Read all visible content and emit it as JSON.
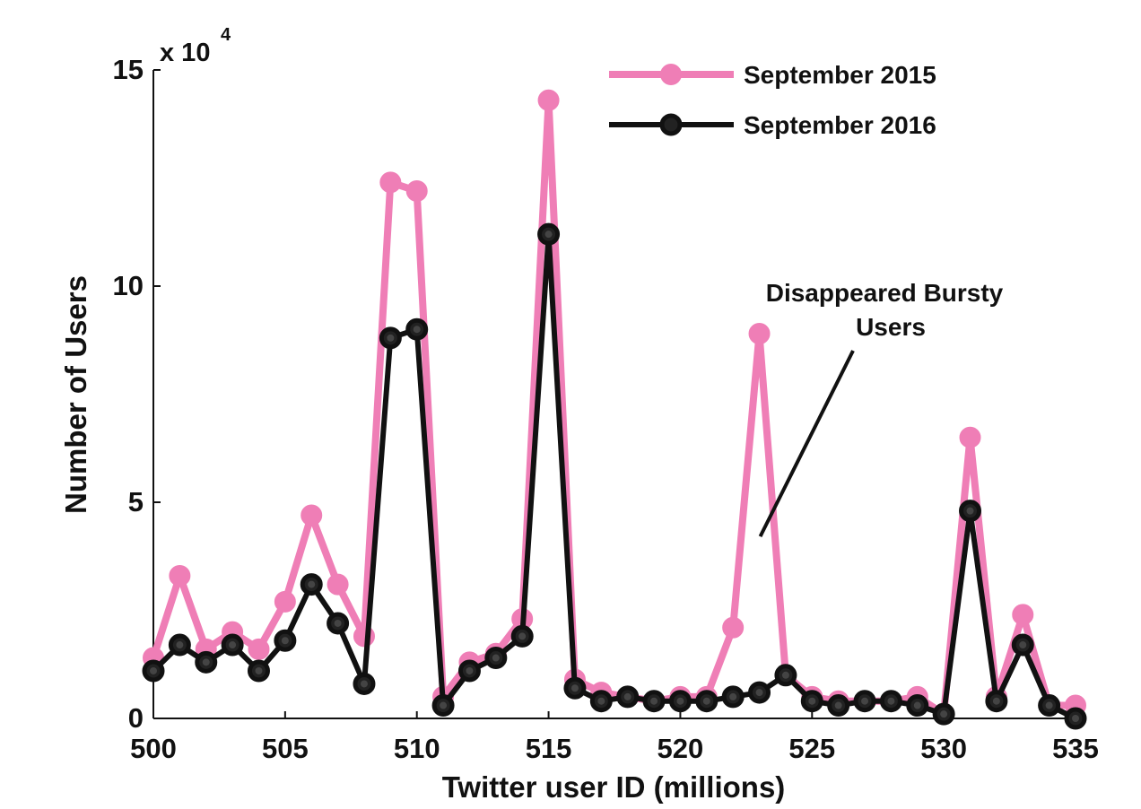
{
  "chart_data": {
    "type": "line",
    "title": "",
    "xlabel": "Twitter user ID (millions)",
    "ylabel": "Number of Users",
    "y_multiplier_label": "x 10",
    "y_multiplier_exponent": "4",
    "xlim": [
      500,
      535
    ],
    "ylim": [
      0,
      15
    ],
    "x_ticks": [
      500,
      505,
      510,
      515,
      520,
      525,
      530,
      535
    ],
    "x_tick_labels": [
      "500",
      "505",
      "510",
      "515",
      "520",
      "525",
      "530",
      "535"
    ],
    "y_ticks": [
      0,
      5,
      10,
      15
    ],
    "y_tick_labels": [
      "0",
      "5",
      "10",
      "15"
    ],
    "grid": false,
    "legend_position": "top-right",
    "x": [
      500,
      501,
      502,
      503,
      504,
      505,
      506,
      507,
      508,
      509,
      510,
      511,
      512,
      513,
      514,
      515,
      516,
      517,
      518,
      519,
      520,
      521,
      522,
      523,
      524,
      525,
      526,
      527,
      528,
      529,
      530,
      531,
      532,
      533,
      534,
      535
    ],
    "series": [
      {
        "name": "September 2015",
        "color": "#ef7eb6",
        "values": [
          1.4,
          3.3,
          1.6,
          2.0,
          1.6,
          2.7,
          4.7,
          3.1,
          1.9,
          12.4,
          12.2,
          0.5,
          1.3,
          1.5,
          2.3,
          14.3,
          0.9,
          0.6,
          0.5,
          0.4,
          0.5,
          0.5,
          2.1,
          8.9,
          1.0,
          0.5,
          0.4,
          0.4,
          0.4,
          0.5,
          0.1,
          6.5,
          0.5,
          2.4,
          0.3,
          0.3
        ]
      },
      {
        "name": "September 2016",
        "color": "#111111",
        "values": [
          1.1,
          1.7,
          1.3,
          1.7,
          1.1,
          1.8,
          3.1,
          2.2,
          0.8,
          8.8,
          9.0,
          0.3,
          1.1,
          1.4,
          1.9,
          11.2,
          0.7,
          0.4,
          0.5,
          0.4,
          0.4,
          0.4,
          0.5,
          0.6,
          1.0,
          0.4,
          0.3,
          0.4,
          0.4,
          0.3,
          0.1,
          4.8,
          0.4,
          1.7,
          0.3,
          0.0
        ]
      }
    ],
    "annotations": [
      {
        "text_lines": [
          "Disappeared Bursty",
          "Users"
        ],
        "points_to": {
          "x": 523,
          "y": 4.5
        },
        "color": "#111111"
      }
    ]
  }
}
